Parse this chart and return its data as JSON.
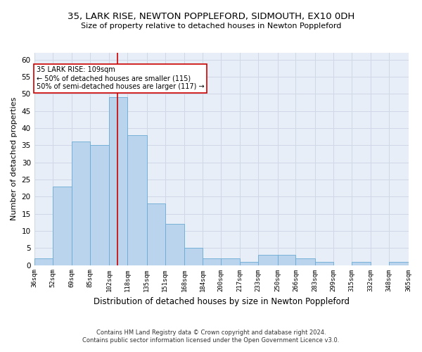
{
  "title": "35, LARK RISE, NEWTON POPPLEFORD, SIDMOUTH, EX10 0DH",
  "subtitle": "Size of property relative to detached houses in Newton Poppleford",
  "xlabel": "Distribution of detached houses by size in Newton Poppleford",
  "ylabel": "Number of detached properties",
  "footnote1": "Contains HM Land Registry data © Crown copyright and database right 2024.",
  "footnote2": "Contains public sector information licensed under the Open Government Licence v3.0.",
  "bar_color": "#bad4ee",
  "bar_edge_color": "#6aaad4",
  "grid_color": "#d0d8e8",
  "background_color": "#e8eef8",
  "vline_x": 109,
  "vline_color": "#cc0000",
  "annotation_text": "35 LARK RISE: 109sqm\n← 50% of detached houses are smaller (115)\n50% of semi-detached houses are larger (117) →",
  "annotation_box_color": "#ffffff",
  "annotation_box_edge": "#cc0000",
  "bins": [
    36,
    52,
    69,
    85,
    102,
    118,
    135,
    151,
    168,
    184,
    200,
    217,
    233,
    250,
    266,
    283,
    299,
    315,
    332,
    348,
    365
  ],
  "counts": [
    2,
    23,
    36,
    35,
    49,
    38,
    18,
    12,
    5,
    2,
    2,
    1,
    3,
    3,
    2,
    1,
    0,
    1,
    0,
    1
  ],
  "ylim": [
    0,
    62
  ],
  "yticks": [
    0,
    5,
    10,
    15,
    20,
    25,
    30,
    35,
    40,
    45,
    50,
    55,
    60
  ]
}
